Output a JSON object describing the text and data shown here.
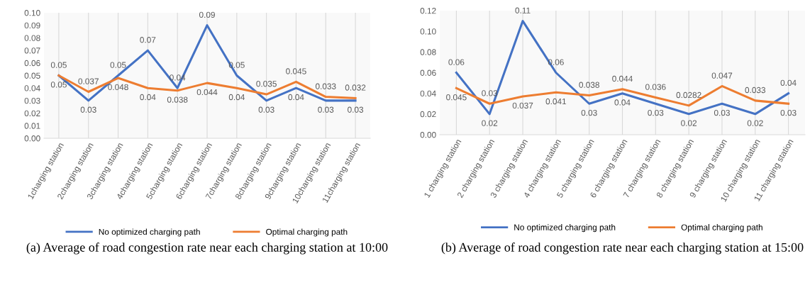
{
  "chart_data": [
    {
      "type": "line",
      "title": "(a) Average of road congestion rate near each charging station at 10:00",
      "categories": [
        "1charging station",
        "2charging station",
        "3charging station",
        "4charging station",
        "5charging station",
        "6charging station",
        "7charging station",
        "8charging station",
        "9charging station",
        "10charging station",
        "11charging station"
      ],
      "series": [
        {
          "name": "No optimized charging path",
          "color": "#4472c4",
          "values": [
            0.05,
            0.03,
            0.05,
            0.07,
            0.04,
            0.09,
            0.05,
            0.03,
            0.04,
            0.03,
            0.03
          ]
        },
        {
          "name": "Optimal charging path",
          "color": "#ed7d31",
          "values": [
            0.05,
            0.037,
            0.048,
            0.04,
            0.038,
            0.044,
            0.04,
            0.035,
            0.045,
            0.033,
            0.032
          ]
        }
      ],
      "ylim": [
        0,
        0.1
      ],
      "yticks": [
        "0.00",
        "0.01",
        "0.02",
        "0.03",
        "0.04",
        "0.05",
        "0.06",
        "0.07",
        "0.08",
        "0.09",
        "0.10"
      ],
      "grid": "x",
      "legend": "bottom",
      "data_labels": true
    },
    {
      "type": "line",
      "title": "(b) Average of road congestion rate near each charging station at 15:00",
      "categories": [
        "1 charging station",
        "2 charging station",
        "3 charging station",
        "4 charging station",
        "5 charging station",
        "6 charging station",
        "7 charging station",
        "8 charging station",
        "9 charging station",
        "10 charging station",
        "11 charging station"
      ],
      "series": [
        {
          "name": "No optimized charging path",
          "color": "#4472c4",
          "values": [
            0.06,
            0.02,
            0.11,
            0.06,
            0.03,
            0.04,
            0.03,
            0.02,
            0.03,
            0.02,
            0.04
          ]
        },
        {
          "name": "Optimal charging path",
          "color": "#ed7d31",
          "values": [
            0.045,
            0.03,
            0.037,
            0.041,
            0.038,
            0.044,
            0.036,
            0.0282,
            0.047,
            0.033,
            0.03
          ]
        }
      ],
      "ylim": [
        0,
        0.12
      ],
      "yticks": [
        "0.00",
        "0.02",
        "0.04",
        "0.06",
        "0.08",
        "0.10",
        "0.12"
      ],
      "grid": "x",
      "legend": "bottom",
      "data_labels": true
    }
  ]
}
